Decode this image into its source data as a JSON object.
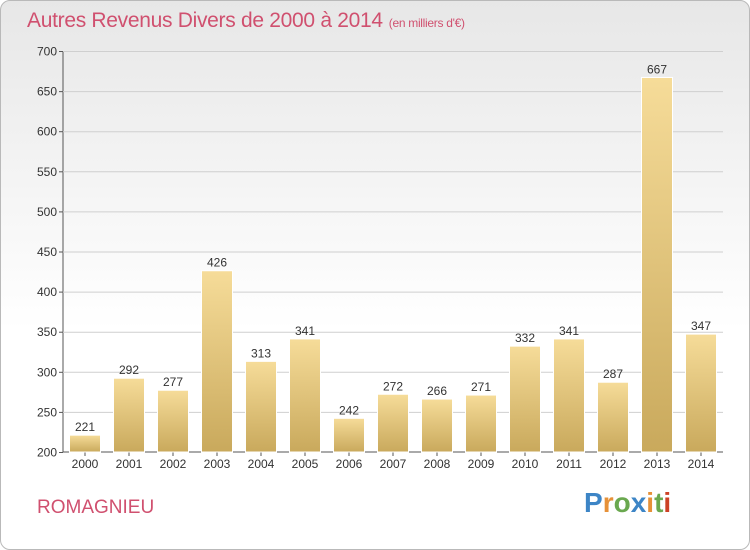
{
  "chart_data": {
    "type": "bar",
    "title": "Autres Revenus Divers de 2000 à 2014",
    "subtitle": "(en milliers d'€)",
    "categories": [
      "2000",
      "2001",
      "2002",
      "2003",
      "2004",
      "2005",
      "2006",
      "2007",
      "2008",
      "2009",
      "2010",
      "2011",
      "2012",
      "2013",
      "2014"
    ],
    "values": [
      221,
      292,
      277,
      426,
      313,
      341,
      242,
      272,
      266,
      271,
      332,
      341,
      287,
      667,
      347
    ],
    "ylim": [
      200,
      700
    ],
    "yticks": [
      200,
      250,
      300,
      350,
      400,
      450,
      500,
      550,
      600,
      650,
      700
    ],
    "grid": true,
    "bar_color": "#e6c677"
  },
  "footer": {
    "location": "ROMAGNIEU",
    "logo": [
      "P",
      "r",
      "o",
      "x",
      "i",
      "t",
      "i"
    ]
  }
}
